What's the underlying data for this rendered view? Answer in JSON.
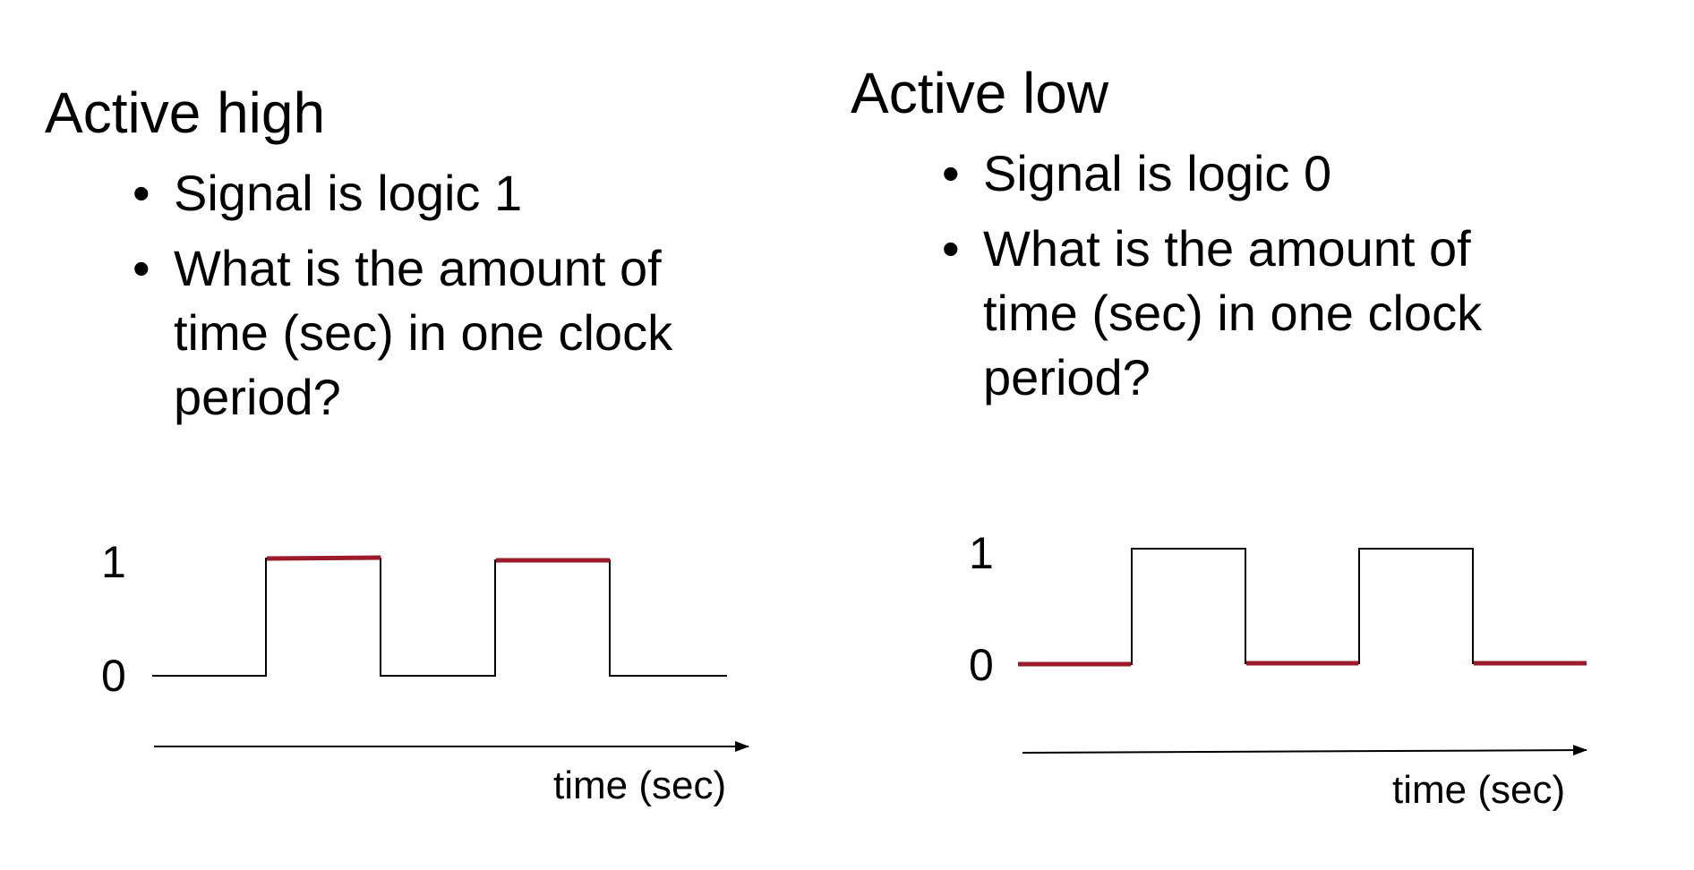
{
  "left": {
    "title": "Active high",
    "bullets": [
      "Signal is logic 1",
      "What is the amount of time (sec) in one clock period?"
    ],
    "y_high_label": "1",
    "y_low_label": "0",
    "x_label": "time (sec)",
    "highlight": "high"
  },
  "right": {
    "title": "Active low",
    "bullets": [
      "Signal is logic 0",
      "What is the amount of time (sec) in one clock period?"
    ],
    "y_high_label": "1",
    "y_low_label": "0",
    "x_label": "time (sec)",
    "highlight": "low"
  },
  "colors": {
    "waveform": "#000000",
    "highlight": "#9b1b2a"
  }
}
